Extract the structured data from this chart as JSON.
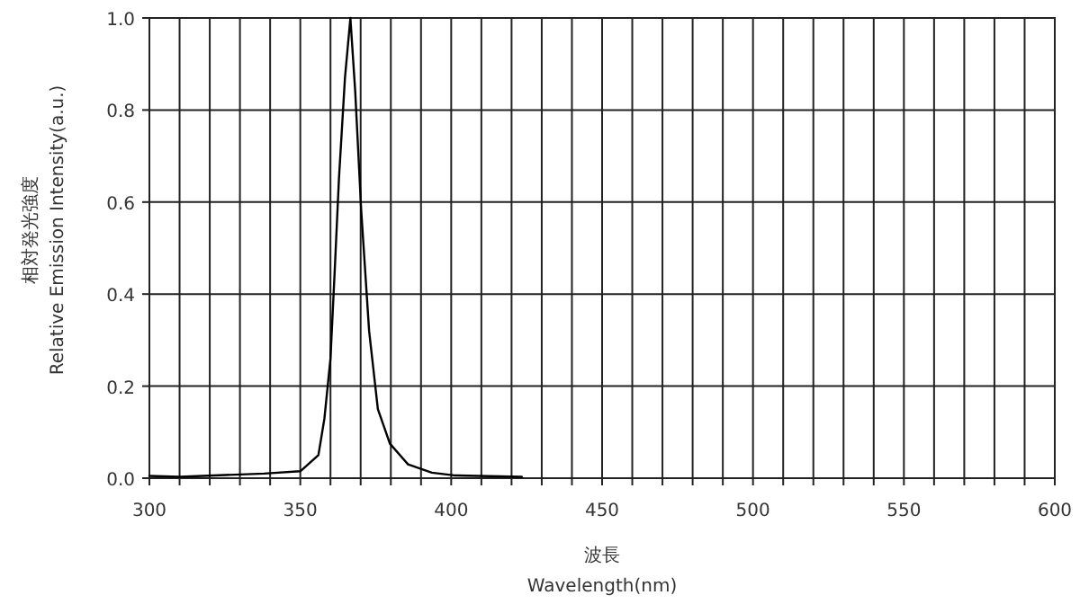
{
  "chart_data": {
    "type": "line",
    "xlabel": "波長\nWavelength(nm)",
    "ylabel": "相対発光強度\nRelative Emission Intensity(a.u.)",
    "xlim": [
      300,
      600
    ],
    "ylim": [
      0,
      1
    ],
    "xticks": [
      300,
      {
        "value": 310,
        "label": null
      },
      {
        "value": 320,
        "label": null
      },
      {
        "value": 330,
        "label": null
      },
      {
        "value": 340,
        "label": null
      },
      350,
      {
        "value": 360,
        "label": null
      },
      {
        "value": 370,
        "label": null
      },
      {
        "value": 380,
        "label": null
      },
      {
        "value": 390,
        "label": null
      },
      400,
      {
        "value": 410,
        "label": null
      },
      {
        "value": 420,
        "label": null
      },
      {
        "value": 430,
        "label": null
      },
      {
        "value": 440,
        "label": null
      },
      450,
      {
        "value": 460,
        "label": null
      },
      {
        "value": 470,
        "label": null
      },
      {
        "value": 480,
        "label": null
      },
      {
        "value": 490,
        "label": null
      },
      500,
      {
        "value": 510,
        "label": null
      },
      {
        "value": 520,
        "label": null
      },
      {
        "value": 530,
        "label": null
      },
      {
        "value": 540,
        "label": null
      },
      550,
      {
        "value": 560,
        "label": null
      },
      {
        "value": 570,
        "label": null
      },
      {
        "value": 580,
        "label": null
      },
      {
        "value": 590,
        "label": null
      },
      600
    ],
    "yticks": [
      {
        "value": 0,
        "label": "0.0"
      },
      0.2,
      0.4,
      0.6,
      0.8,
      {
        "value": 1,
        "label": "1.0"
      }
    ],
    "grid": true,
    "marker": "none",
    "line_style": "solid",
    "series": [
      {
        "color": "#000000",
        "x": [
          300,
          310,
          338,
          350,
          356,
          358,
          360,
          361.4,
          362.8,
          364.8,
          366.6,
          368.2,
          370.2,
          372.8,
          375.7,
          379.7,
          385.7,
          393.6,
          401,
          423.4
        ],
        "values": [
          0.005,
          0.003,
          0.01,
          0.015,
          0.05,
          0.13,
          0.26,
          0.45,
          0.65,
          0.87,
          1.0,
          0.84,
          0.58,
          0.32,
          0.15,
          0.075,
          0.03,
          0.012,
          0.006,
          0.003
        ]
      }
    ]
  }
}
